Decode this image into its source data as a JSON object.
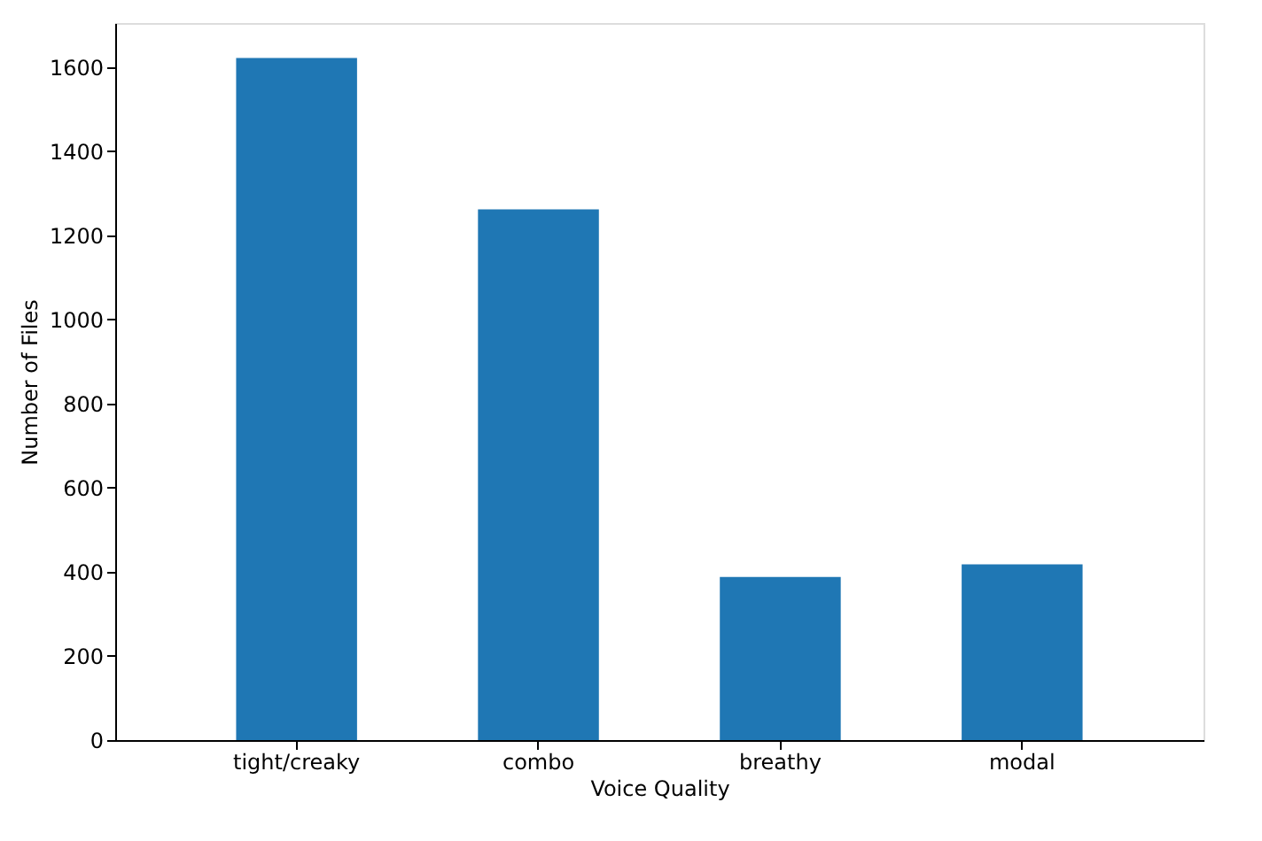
{
  "chart_data": {
    "type": "bar",
    "xlabel": "Voice Quality",
    "ylabel": "Number of Files",
    "categories": [
      "tight/creaky",
      "combo",
      "breathy",
      "modal"
    ],
    "values": [
      1622,
      1262,
      388,
      418
    ],
    "color": "#1f77b4",
    "ylim": [
      0,
      1705
    ],
    "yticks": [
      0,
      200,
      400,
      600,
      800,
      1000,
      1200,
      1400,
      1600
    ],
    "grid": false
  }
}
